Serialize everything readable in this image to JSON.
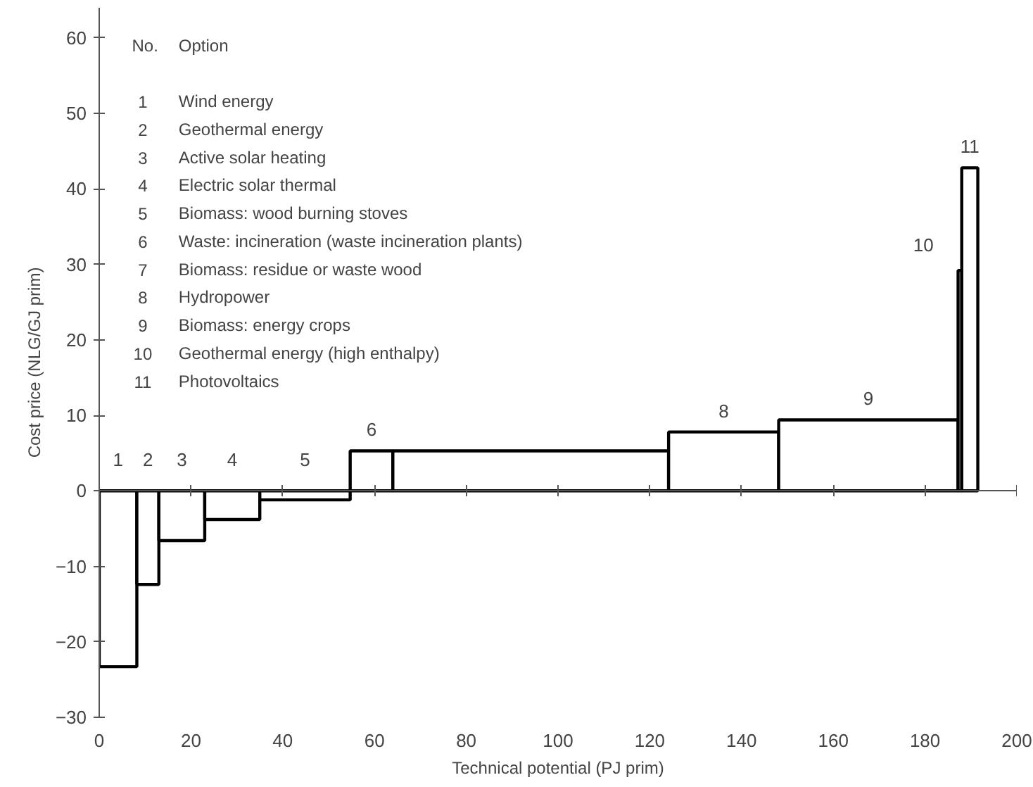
{
  "chart_data": {
    "type": "histogram",
    "xlabel": "Technical potential (PJ prim)",
    "ylabel": "Cost price (NLG/GJ prim)",
    "bins": [
      0,
      8.2,
      13,
      23,
      35,
      54.7,
      64,
      124.1,
      148.1,
      187.2,
      188,
      191.5
    ],
    "values": [
      -23.3,
      -12.4,
      -6.6,
      -3.8,
      -1.2,
      5.3,
      5.3,
      7.8,
      9.4,
      29.2,
      42.8
    ],
    "color": "#ffffff",
    "xlim": [
      0,
      200
    ],
    "ylim": [
      -30,
      64
    ],
    "xticks": [
      0,
      20,
      40,
      60,
      80,
      100,
      120,
      140,
      160,
      180,
      200
    ],
    "yticks": [
      -30,
      -20,
      -10,
      0,
      10,
      20,
      30,
      40,
      50,
      60
    ],
    "annotations": [
      {
        "text": "1",
        "x": 4.1,
        "y": 0
      },
      {
        "text": "2",
        "x": 10.6,
        "y": 0
      },
      {
        "text": "3",
        "x": 18,
        "y": 0
      },
      {
        "text": "4",
        "x": 29,
        "y": 0
      },
      {
        "text": "5",
        "x": 44.85,
        "y": 0
      },
      {
        "text": "6",
        "x": 59.35,
        "y": 5.3
      },
      {
        "text": "8",
        "x": 136.1,
        "y": 7.8
      },
      {
        "text": "9",
        "x": 167.65,
        "y": 9.4
      },
      {
        "text": "10",
        "x": 187.6,
        "y": 29.2
      },
      {
        "text": "11",
        "x": 189.75,
        "y": 42.8
      },
      "No.",
      "Option",
      "1",
      "Wind energy",
      "2",
      "Geothermal energy",
      "3",
      "Active solar heating",
      "4",
      "Electric solar thermal",
      "5",
      "Biomass: wood burning stoves",
      "6",
      "Waste: incineration (waste incineration plants)",
      "7",
      "Biomass: residue or waste wood",
      "8",
      "Hydropower",
      "9",
      "Biomass: energy crops",
      "10",
      "Geothermal energy (high enthalpy)",
      "11",
      "Photovoltaics"
    ]
  }
}
